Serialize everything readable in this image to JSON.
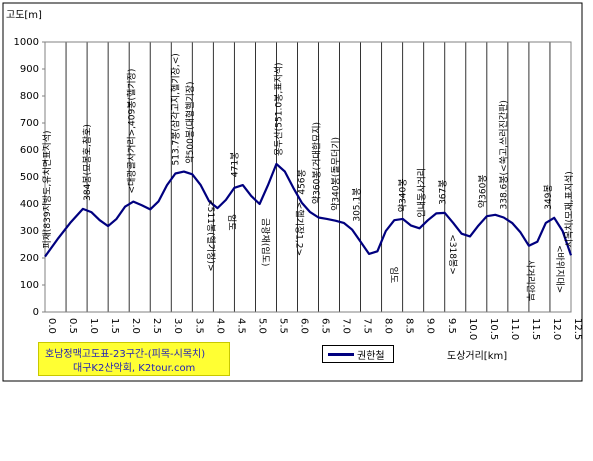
{
  "chart_data": {
    "type": "line",
    "ylabel": "고도[m]",
    "xlabel": "도상거리[km]",
    "title_line1": "호남정맥고도표-23구간-(피목-시목치)",
    "title_line2": "대구K2산악회, K2tour.com",
    "ylim": [
      0,
      1000
    ],
    "yticks": [
      "0",
      "100",
      "200",
      "300",
      "400",
      "500",
      "600",
      "700",
      "800",
      "900",
      "1000"
    ],
    "xticks": [
      "0.0",
      "0.5",
      "1.0",
      "1.5",
      "2.0",
      "2.5",
      "3.0",
      "3.5",
      "4.0",
      "4.5",
      "5.0",
      "5.5",
      "6.0",
      "6.5",
      "7.0",
      "7.5",
      "8.0",
      "8.5",
      "9.0",
      "9.5",
      "10.0",
      "10.5",
      "11.0",
      "11.5",
      "12.0",
      "12.5"
    ],
    "xlim": [
      0,
      12.5
    ],
    "grid": "vertical",
    "legend_position": "bottom-center",
    "series": [
      {
        "name": "권한철",
        "color": "#00007f",
        "x": [
          0,
          0.3,
          0.6,
          0.9,
          1.1,
          1.3,
          1.5,
          1.7,
          1.9,
          2.1,
          2.3,
          2.5,
          2.7,
          2.9,
          3.1,
          3.3,
          3.5,
          3.7,
          3.9,
          4.1,
          4.3,
          4.5,
          4.7,
          4.9,
          5.1,
          5.3,
          5.5,
          5.7,
          5.9,
          6.1,
          6.3,
          6.5,
          6.7,
          6.9,
          7.1,
          7.3,
          7.5,
          7.7,
          7.9,
          8.1,
          8.3,
          8.5,
          8.7,
          8.9,
          9.1,
          9.3,
          9.5,
          9.7,
          9.9,
          10.1,
          10.3,
          10.5,
          10.7,
          10.9,
          11.1,
          11.3,
          11.5,
          11.7,
          11.9,
          12.1,
          12.3,
          12.5
        ],
        "values": [
          205,
          270,
          330,
          382,
          370,
          340,
          318,
          345,
          390,
          409,
          395,
          380,
          410,
          470,
          513,
          520,
          510,
          470,
          410,
          385,
          415,
          460,
          470,
          430,
          400,
          470,
          548,
          520,
          460,
          405,
          370,
          350,
          345,
          338,
          330,
          305,
          260,
          215,
          225,
          300,
          340,
          345,
          320,
          310,
          340,
          365,
          367,
          330,
          290,
          280,
          320,
          355,
          360,
          350,
          330,
          295,
          245,
          260,
          330,
          349,
          300,
          210
        ]
      }
    ],
    "annotations": [
      {
        "x": 0.05,
        "y": 205,
        "text": "피재(839지방도,유치면표지석)"
      },
      {
        "x": 1.0,
        "y": 382,
        "text": "384봉(묘봉호,참호)"
      },
      {
        "x": 2.05,
        "y": 409,
        "text": "<대광골사거리>,409봉(헬기장)"
      },
      {
        "x": 3.1,
        "y": 513,
        "text": "513.7봉(삼각고지,헬기장,<)"
      },
      {
        "x": 3.45,
        "y": 520,
        "text": "약500봉(대형헬기장)"
      },
      {
        "x": 3.8,
        "y": 470,
        "text": "<511봉(헬기장)>",
        "below": true
      },
      {
        "x": 4.3,
        "y": 415,
        "text": "임도",
        "below": true
      },
      {
        "x": 4.5,
        "y": 470,
        "text": "471봉"
      },
      {
        "x": 5.1,
        "y": 400,
        "text": "금광재(임도)",
        "below": true
      },
      {
        "x": 5.55,
        "y": 548,
        "text": "용두산(551.0봉,표지석)"
      },
      {
        "x": 5.9,
        "y": 460,
        "text": "<헬기장1,2>",
        "below": true
      },
      {
        "x": 6.1,
        "y": 405,
        "text": "456봉"
      },
      {
        "x": 6.45,
        "y": 370,
        "text": "약360봉(거대한묘지)"
      },
      {
        "x": 6.9,
        "y": 345,
        "text": "약340봉(돌무더기)"
      },
      {
        "x": 7.4,
        "y": 305,
        "text": "305.1봉"
      },
      {
        "x": 8.15,
        "y": 220,
        "text": "임도",
        "below": true
      },
      {
        "x": 8.5,
        "y": 340,
        "text": "약340봉"
      },
      {
        "x": 8.95,
        "y": 320,
        "text": "인내동사거리"
      },
      {
        "x": 9.45,
        "y": 367,
        "text": "367봉"
      },
      {
        "x": 9.55,
        "y": 340,
        "text": "<318봉>",
        "below": true
      },
      {
        "x": 10.4,
        "y": 355,
        "text": "약360봉"
      },
      {
        "x": 10.9,
        "y": 350,
        "text": "338.6봉(<쑥고,쓰러진간판)"
      },
      {
        "x": 11.4,
        "y": 245,
        "text": "사거리안부",
        "below": true
      },
      {
        "x": 11.95,
        "y": 349,
        "text": "349봉"
      },
      {
        "x": 12.1,
        "y": 300,
        "text": "<바위지대>",
        "below": true
      },
      {
        "x": 12.45,
        "y": 210,
        "text": "시목치(모재,표지석)"
      }
    ]
  }
}
